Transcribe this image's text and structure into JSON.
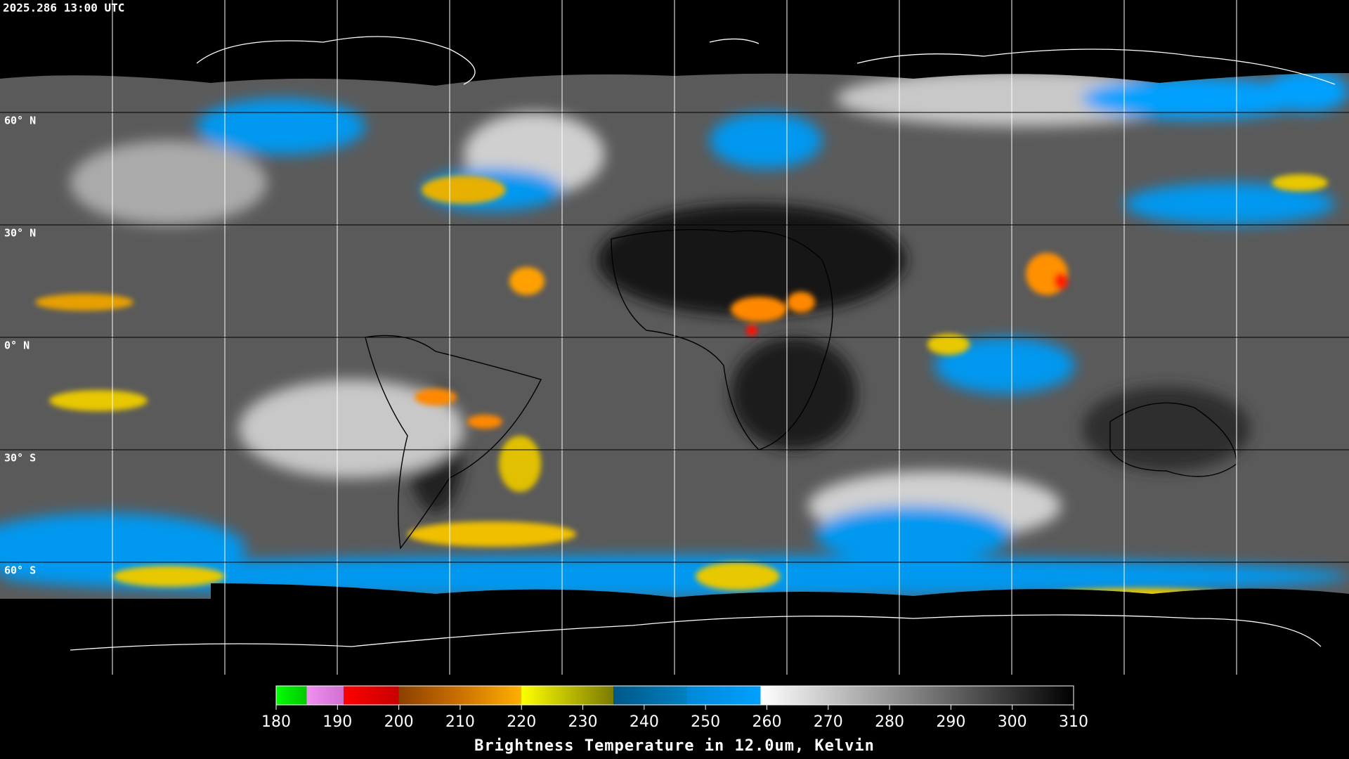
{
  "header": {
    "timestamp": "2025.286 13:00 UTC"
  },
  "map": {
    "lonlim": [
      -180,
      180
    ],
    "latlim": [
      -90,
      90
    ],
    "meridians": [
      -150,
      -120,
      -90,
      -60,
      -30,
      0,
      30,
      60,
      90,
      120,
      150
    ],
    "latitudes": [
      {
        "value": 60,
        "label": "60° N"
      },
      {
        "value": 30,
        "label": "30° N"
      },
      {
        "value": 0,
        "label": "0° N"
      },
      {
        "value": -30,
        "label": "30° S"
      },
      {
        "value": -60,
        "label": "60° S"
      }
    ]
  },
  "colorbar": {
    "title": "Brightness Temperature in 12.0um, Kelvin",
    "lim": [
      180,
      310
    ],
    "ticks": [
      180,
      190,
      200,
      210,
      220,
      230,
      240,
      250,
      260,
      270,
      280,
      290,
      300,
      310
    ],
    "stops": [
      {
        "value": 180,
        "color": "#00ff00"
      },
      {
        "value": 185,
        "color": "#00c800"
      },
      {
        "value": 185,
        "color": "#f090f0"
      },
      {
        "value": 191,
        "color": "#d070d0"
      },
      {
        "value": 191,
        "color": "#ff0000"
      },
      {
        "value": 200,
        "color": "#c80000"
      },
      {
        "value": 200,
        "color": "#8b4000"
      },
      {
        "value": 210,
        "color": "#cc7000"
      },
      {
        "value": 220,
        "color": "#ffb000"
      },
      {
        "value": 220,
        "color": "#ffff00"
      },
      {
        "value": 235,
        "color": "#7a7a00"
      },
      {
        "value": 235,
        "color": "#005888"
      },
      {
        "value": 247,
        "color": "#0080c0"
      },
      {
        "value": 247,
        "color": "#0088d8"
      },
      {
        "value": 259,
        "color": "#00a0ff"
      },
      {
        "value": 259,
        "color": "#ffffff"
      },
      {
        "value": 310,
        "color": "#000000"
      }
    ]
  }
}
